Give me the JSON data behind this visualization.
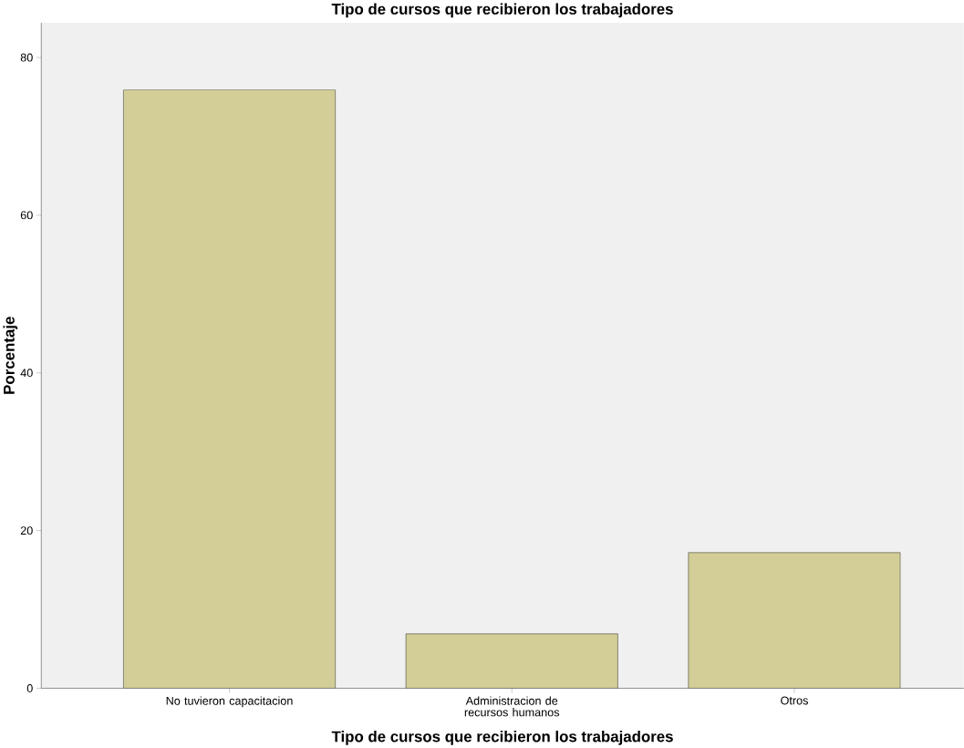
{
  "chart_data": {
    "type": "bar",
    "title": "Tipo de cursos que recibieron los trabajadores",
    "xlabel": "Tipo de cursos que recibieron los trabajadores",
    "ylabel": "Porcentaje",
    "categories": [
      "No tuvieron capacitacion",
      "Administracion de recursos humanos",
      "Otros"
    ],
    "values": [
      75.9,
      6.9,
      17.2
    ],
    "color": "#d3ce97",
    "ylim": [
      0,
      84.4
    ],
    "yticks": [
      0,
      20,
      40,
      60,
      80
    ],
    "grid": false
  }
}
